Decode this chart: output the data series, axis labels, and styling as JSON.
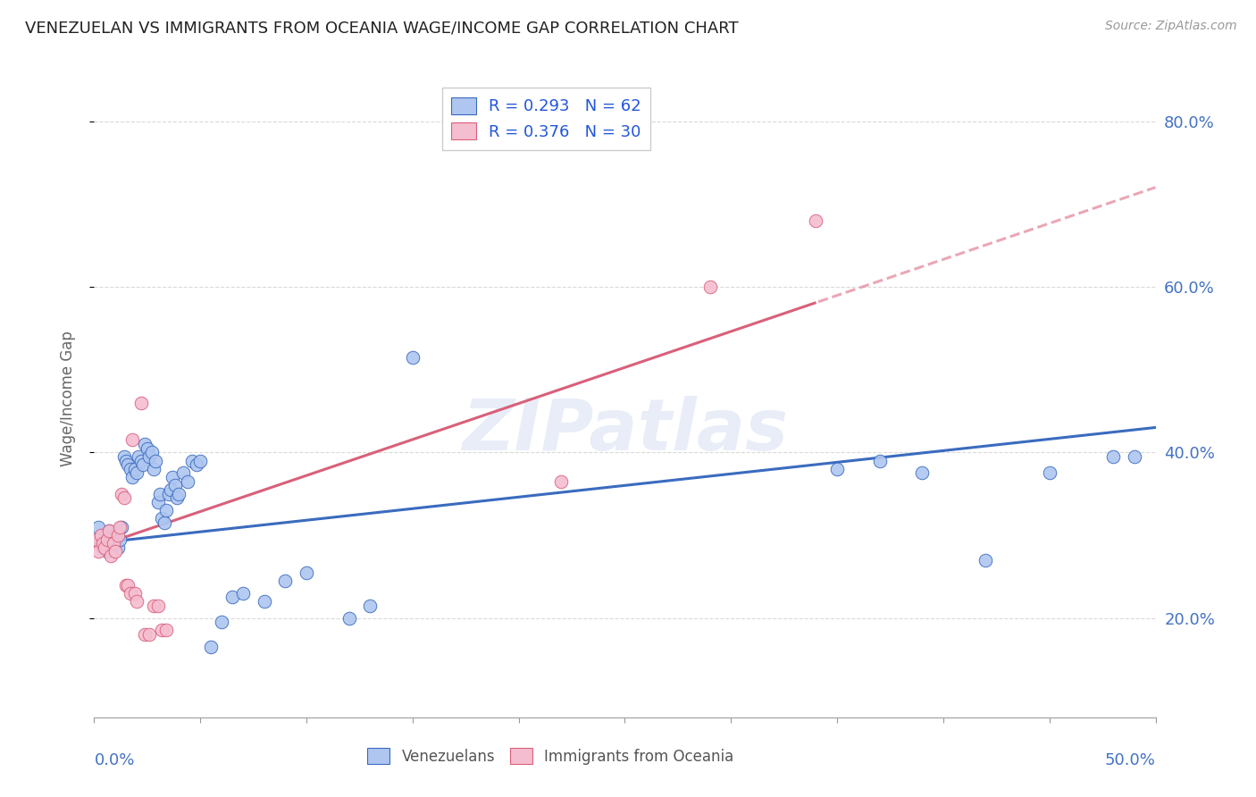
{
  "title": "VENEZUELAN VS IMMIGRANTS FROM OCEANIA WAGE/INCOME GAP CORRELATION CHART",
  "source": "Source: ZipAtlas.com",
  "ylabel": "Wage/Income Gap",
  "watermark": "ZIPatlas",
  "venezuelan_color": "#aec6f0",
  "oceania_color": "#f5bdd0",
  "venezuelan_line_color": "#3a6bbf",
  "oceania_line_color": "#d9607a",
  "venezuelan_scatter": [
    [
      0.001,
      0.295
    ],
    [
      0.002,
      0.31
    ],
    [
      0.003,
      0.29
    ],
    [
      0.004,
      0.285
    ],
    [
      0.005,
      0.3
    ],
    [
      0.006,
      0.28
    ],
    [
      0.007,
      0.305
    ],
    [
      0.008,
      0.295
    ],
    [
      0.009,
      0.29
    ],
    [
      0.01,
      0.3
    ],
    [
      0.011,
      0.285
    ],
    [
      0.012,
      0.295
    ],
    [
      0.013,
      0.31
    ],
    [
      0.014,
      0.395
    ],
    [
      0.015,
      0.39
    ],
    [
      0.016,
      0.385
    ],
    [
      0.017,
      0.38
    ],
    [
      0.018,
      0.37
    ],
    [
      0.019,
      0.38
    ],
    [
      0.02,
      0.375
    ],
    [
      0.021,
      0.395
    ],
    [
      0.022,
      0.39
    ],
    [
      0.023,
      0.385
    ],
    [
      0.024,
      0.41
    ],
    [
      0.025,
      0.405
    ],
    [
      0.026,
      0.395
    ],
    [
      0.027,
      0.4
    ],
    [
      0.028,
      0.38
    ],
    [
      0.029,
      0.39
    ],
    [
      0.03,
      0.34
    ],
    [
      0.031,
      0.35
    ],
    [
      0.032,
      0.32
    ],
    [
      0.033,
      0.315
    ],
    [
      0.034,
      0.33
    ],
    [
      0.035,
      0.35
    ],
    [
      0.036,
      0.355
    ],
    [
      0.037,
      0.37
    ],
    [
      0.038,
      0.36
    ],
    [
      0.039,
      0.345
    ],
    [
      0.04,
      0.35
    ],
    [
      0.042,
      0.375
    ],
    [
      0.044,
      0.365
    ],
    [
      0.046,
      0.39
    ],
    [
      0.048,
      0.385
    ],
    [
      0.05,
      0.39
    ],
    [
      0.055,
      0.165
    ],
    [
      0.06,
      0.195
    ],
    [
      0.065,
      0.225
    ],
    [
      0.07,
      0.23
    ],
    [
      0.08,
      0.22
    ],
    [
      0.09,
      0.245
    ],
    [
      0.1,
      0.255
    ],
    [
      0.12,
      0.2
    ],
    [
      0.13,
      0.215
    ],
    [
      0.15,
      0.515
    ],
    [
      0.35,
      0.38
    ],
    [
      0.37,
      0.39
    ],
    [
      0.39,
      0.375
    ],
    [
      0.42,
      0.27
    ],
    [
      0.45,
      0.375
    ],
    [
      0.48,
      0.395
    ],
    [
      0.49,
      0.395
    ]
  ],
  "oceania_scatter": [
    [
      0.001,
      0.295
    ],
    [
      0.002,
      0.28
    ],
    [
      0.003,
      0.3
    ],
    [
      0.004,
      0.29
    ],
    [
      0.005,
      0.285
    ],
    [
      0.006,
      0.295
    ],
    [
      0.007,
      0.305
    ],
    [
      0.008,
      0.275
    ],
    [
      0.009,
      0.29
    ],
    [
      0.01,
      0.28
    ],
    [
      0.011,
      0.3
    ],
    [
      0.012,
      0.31
    ],
    [
      0.013,
      0.35
    ],
    [
      0.014,
      0.345
    ],
    [
      0.015,
      0.24
    ],
    [
      0.016,
      0.24
    ],
    [
      0.017,
      0.23
    ],
    [
      0.018,
      0.415
    ],
    [
      0.019,
      0.23
    ],
    [
      0.02,
      0.22
    ],
    [
      0.022,
      0.46
    ],
    [
      0.024,
      0.18
    ],
    [
      0.026,
      0.18
    ],
    [
      0.028,
      0.215
    ],
    [
      0.03,
      0.215
    ],
    [
      0.032,
      0.185
    ],
    [
      0.034,
      0.185
    ],
    [
      0.22,
      0.365
    ],
    [
      0.29,
      0.6
    ],
    [
      0.34,
      0.68
    ]
  ],
  "xlim": [
    0.0,
    0.5
  ],
  "ylim": [
    0.08,
    0.85
  ],
  "background_color": "#ffffff",
  "grid_color": "#d0d0d0",
  "title_color": "#222222",
  "axis_label_color": "#4472c4"
}
